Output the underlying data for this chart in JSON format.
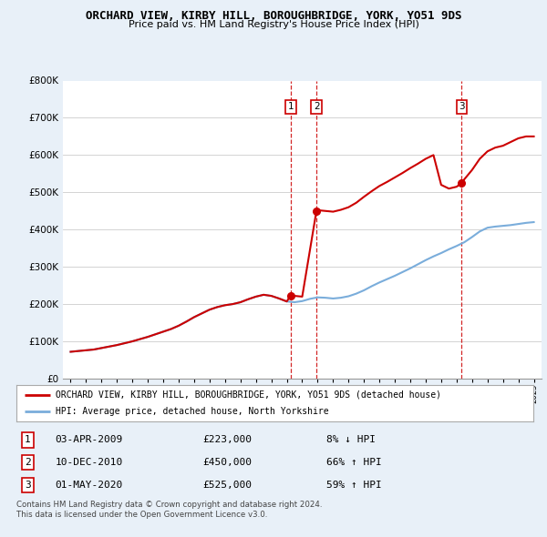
{
  "title": "ORCHARD VIEW, KIRBY HILL, BOROUGHBRIDGE, YORK, YO51 9DS",
  "subtitle": "Price paid vs. HM Land Registry's House Price Index (HPI)",
  "legend_label_red": "ORCHARD VIEW, KIRBY HILL, BOROUGHBRIDGE, YORK, YO51 9DS (detached house)",
  "legend_label_blue": "HPI: Average price, detached house, North Yorkshire",
  "footer_line1": "Contains HM Land Registry data © Crown copyright and database right 2024.",
  "footer_line2": "This data is licensed under the Open Government Licence v3.0.",
  "transactions": [
    {
      "num": "1",
      "date": "03-APR-2009",
      "price": "£223,000",
      "change": "8% ↓ HPI",
      "year": 2009.25
    },
    {
      "num": "2",
      "date": "10-DEC-2010",
      "price": "£450,000",
      "change": "66% ↑ HPI",
      "year": 2010.92
    },
    {
      "num": "3",
      "date": "01-MAY-2020",
      "price": "£525,000",
      "change": "59% ↑ HPI",
      "year": 2020.33
    }
  ],
  "transaction_prices": [
    223000,
    450000,
    525000
  ],
  "red_color": "#cc0000",
  "blue_color": "#7aaddb",
  "background_color": "#e8f0f8",
  "plot_bg": "#ffffff",
  "ylim": [
    0,
    800000
  ],
  "xlim_start": 1994.5,
  "xlim_end": 2025.5,
  "hpi_years": [
    1995.0,
    1995.5,
    1996.0,
    1996.5,
    1997.0,
    1997.5,
    1998.0,
    1998.5,
    1999.0,
    1999.5,
    2000.0,
    2000.5,
    2001.0,
    2001.5,
    2002.0,
    2002.5,
    2003.0,
    2003.5,
    2004.0,
    2004.5,
    2005.0,
    2005.5,
    2006.0,
    2006.5,
    2007.0,
    2007.5,
    2008.0,
    2008.5,
    2009.0,
    2009.5,
    2010.0,
    2010.5,
    2011.0,
    2011.5,
    2012.0,
    2012.5,
    2013.0,
    2013.5,
    2014.0,
    2014.5,
    2015.0,
    2015.5,
    2016.0,
    2016.5,
    2017.0,
    2017.5,
    2018.0,
    2018.5,
    2019.0,
    2019.5,
    2020.0,
    2020.5,
    2021.0,
    2021.5,
    2022.0,
    2022.5,
    2023.0,
    2023.5,
    2024.0,
    2024.5,
    2025.0
  ],
  "hpi_values": [
    72000,
    74000,
    76000,
    78000,
    82000,
    86000,
    90000,
    95000,
    100000,
    106000,
    112000,
    119000,
    126000,
    133000,
    142000,
    153000,
    165000,
    175000,
    185000,
    192000,
    197000,
    200000,
    205000,
    213000,
    220000,
    225000,
    222000,
    215000,
    207000,
    205000,
    208000,
    214000,
    218000,
    217000,
    215000,
    217000,
    221000,
    228000,
    237000,
    248000,
    258000,
    267000,
    276000,
    286000,
    296000,
    307000,
    318000,
    328000,
    337000,
    347000,
    356000,
    366000,
    380000,
    395000,
    405000,
    408000,
    410000,
    412000,
    415000,
    418000,
    420000
  ],
  "red_years_pre1": [
    1995.0,
    1995.5,
    1996.0,
    1996.5,
    1997.0,
    1997.5,
    1998.0,
    1998.5,
    1999.0,
    1999.5,
    2000.0,
    2000.5,
    2001.0,
    2001.5,
    2002.0,
    2002.5,
    2003.0,
    2003.5,
    2004.0,
    2004.5,
    2005.0,
    2005.5,
    2006.0,
    2006.5,
    2007.0,
    2007.5,
    2008.0,
    2008.5,
    2009.0,
    2009.25
  ],
  "red_values_pre1": [
    72000,
    74000,
    76000,
    78000,
    82000,
    86000,
    90000,
    95000,
    100000,
    106000,
    112000,
    119000,
    126000,
    133000,
    142000,
    153000,
    165000,
    175000,
    185000,
    192000,
    197000,
    200000,
    205000,
    213000,
    220000,
    225000,
    222000,
    215000,
    207000,
    223000
  ],
  "red_years_post1": [
    2009.25,
    2009.5,
    2010.0,
    2010.92
  ],
  "red_values_post1": [
    223000,
    222000,
    220000,
    450000
  ],
  "red_years_post2": [
    2010.92,
    2011.0,
    2011.5,
    2012.0,
    2012.5,
    2013.0,
    2013.5,
    2014.0,
    2014.5,
    2015.0,
    2015.5,
    2016.0,
    2016.5,
    2017.0,
    2017.5,
    2018.0,
    2018.5,
    2019.0,
    2019.5,
    2020.0,
    2020.33
  ],
  "red_values_post2": [
    450000,
    452000,
    450000,
    448000,
    453000,
    460000,
    472000,
    488000,
    503000,
    517000,
    528000,
    540000,
    552000,
    565000,
    577000,
    590000,
    600000,
    520000,
    510000,
    515000,
    525000
  ],
  "red_years_post3": [
    2020.33,
    2020.5,
    2021.0,
    2021.5,
    2022.0,
    2022.5,
    2023.0,
    2023.5,
    2024.0,
    2024.5,
    2025.0
  ],
  "red_values_post3": [
    525000,
    535000,
    560000,
    590000,
    610000,
    620000,
    625000,
    635000,
    645000,
    650000,
    650000
  ]
}
